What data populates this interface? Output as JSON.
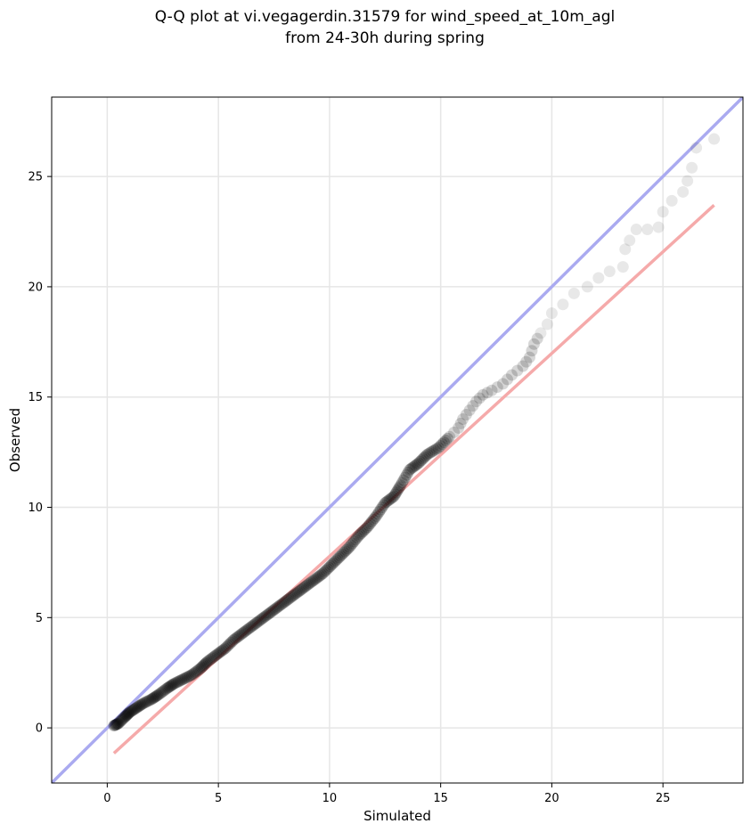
{
  "chart_data": {
    "type": "scatter",
    "title_lines": [
      "Q-Q plot at vi.vegagerdin.31579 for wind_speed_at_10m_agl",
      "from 24-30h during spring"
    ],
    "xlabel": "Simulated",
    "ylabel": "Observed",
    "xlim": [
      -2.5,
      28.6
    ],
    "ylim": [
      -2.5,
      28.6
    ],
    "xticks": [
      0,
      5,
      10,
      15,
      20,
      25
    ],
    "yticks": [
      0,
      5,
      10,
      15,
      20,
      25
    ],
    "xtick_labels": [
      "0",
      "5",
      "10",
      "15",
      "20",
      "25"
    ],
    "ytick_labels": [
      "0",
      "5",
      "10",
      "15",
      "20",
      "25"
    ],
    "grid": true,
    "identity_line": {
      "from": [
        -2.5,
        -2.5
      ],
      "to": [
        28.6,
        28.6
      ],
      "color": "#aaaaf0"
    },
    "fit_line": {
      "from": [
        0.3,
        -1.15
      ],
      "to": [
        27.3,
        23.7
      ],
      "color": "#f5aaaa"
    },
    "point_color": "#000000",
    "quantile_points": [
      [
        0.3,
        0.1
      ],
      [
        0.5,
        0.2
      ],
      [
        0.8,
        0.5
      ],
      [
        1.0,
        0.7
      ],
      [
        1.3,
        0.9
      ],
      [
        1.6,
        1.1
      ],
      [
        2.0,
        1.3
      ],
      [
        2.3,
        1.5
      ],
      [
        2.7,
        1.8
      ],
      [
        3.0,
        2.0
      ],
      [
        3.4,
        2.2
      ],
      [
        3.8,
        2.4
      ],
      [
        4.2,
        2.7
      ],
      [
        4.5,
        3.0
      ],
      [
        4.9,
        3.3
      ],
      [
        5.3,
        3.6
      ],
      [
        5.7,
        4.0
      ],
      [
        6.1,
        4.3
      ],
      [
        6.5,
        4.6
      ],
      [
        6.9,
        4.9
      ],
      [
        7.3,
        5.2
      ],
      [
        7.7,
        5.5
      ],
      [
        8.1,
        5.8
      ],
      [
        8.5,
        6.1
      ],
      [
        8.9,
        6.4
      ],
      [
        9.3,
        6.7
      ],
      [
        9.7,
        7.0
      ],
      [
        10.1,
        7.4
      ],
      [
        10.5,
        7.8
      ],
      [
        10.9,
        8.2
      ],
      [
        11.3,
        8.7
      ],
      [
        11.7,
        9.1
      ],
      [
        12.1,
        9.6
      ],
      [
        12.5,
        10.2
      ],
      [
        12.9,
        10.5
      ],
      [
        13.2,
        11.0
      ],
      [
        13.6,
        11.7
      ],
      [
        14.0,
        12.0
      ],
      [
        14.4,
        12.4
      ],
      [
        14.9,
        12.7
      ],
      [
        15.4,
        13.2
      ],
      [
        15.8,
        13.6
      ],
      [
        16.0,
        14.0
      ],
      [
        16.3,
        14.4
      ],
      [
        16.6,
        14.8
      ],
      [
        16.9,
        15.1
      ],
      [
        17.3,
        15.3
      ],
      [
        17.8,
        15.6
      ],
      [
        18.2,
        16.0
      ],
      [
        18.7,
        16.4
      ],
      [
        19.0,
        16.8
      ],
      [
        19.2,
        17.4
      ],
      [
        19.5,
        17.9
      ],
      [
        19.8,
        18.3
      ],
      [
        20.0,
        18.8
      ],
      [
        20.5,
        19.2
      ],
      [
        21.0,
        19.7
      ],
      [
        21.6,
        20.0
      ],
      [
        22.1,
        20.4
      ],
      [
        22.6,
        20.7
      ],
      [
        23.2,
        20.9
      ],
      [
        23.3,
        21.7
      ],
      [
        23.5,
        22.1
      ],
      [
        23.8,
        22.6
      ],
      [
        24.3,
        22.6
      ],
      [
        24.8,
        22.7
      ],
      [
        25.0,
        23.4
      ],
      [
        25.4,
        23.9
      ],
      [
        25.9,
        24.3
      ],
      [
        26.1,
        24.8
      ],
      [
        26.3,
        25.4
      ],
      [
        26.5,
        26.3
      ],
      [
        27.3,
        26.7
      ]
    ]
  }
}
